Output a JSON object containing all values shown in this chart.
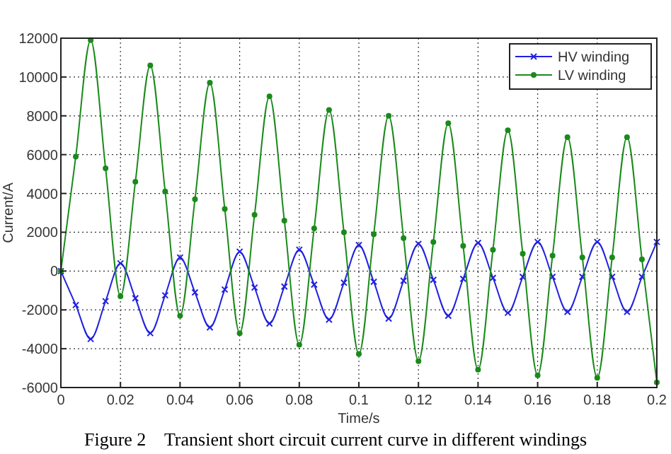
{
  "chart_data": {
    "type": "line",
    "xlabel": "Time/s",
    "ylabel": "Current/A",
    "x": [
      0,
      0.005,
      0.01,
      0.015,
      0.02,
      0.025,
      0.03,
      0.035,
      0.04,
      0.045,
      0.05,
      0.055,
      0.06,
      0.065,
      0.07,
      0.075,
      0.08,
      0.085,
      0.09,
      0.095,
      0.1,
      0.105,
      0.11,
      0.115,
      0.12,
      0.125,
      0.13,
      0.135,
      0.14,
      0.145,
      0.15,
      0.155,
      0.16,
      0.165,
      0.17,
      0.175,
      0.18,
      0.185,
      0.19,
      0.195,
      0.2
    ],
    "series": [
      {
        "name": "HV winding",
        "color": "#2020e0",
        "marker": "cross",
        "values": [
          0,
          -1750,
          -3500,
          -1550,
          400,
          -1400,
          -3200,
          -1250,
          700,
          -1100,
          -2900,
          -950,
          1000,
          -850,
          -2700,
          -800,
          1100,
          -700,
          -2500,
          -600,
          1340,
          -550,
          -2450,
          -500,
          1400,
          -450,
          -2300,
          -400,
          1450,
          -350,
          -2150,
          -300,
          1500,
          -300,
          -2100,
          -300,
          1500,
          -300,
          -2100,
          -300,
          1500
        ]
      },
      {
        "name": "LV winding",
        "color": "#1a8a1a",
        "marker": "circle",
        "values": [
          0,
          5900,
          11900,
          5300,
          -1300,
          4600,
          10600,
          4100,
          -2300,
          3700,
          9700,
          3200,
          -3200,
          2900,
          9000,
          2600,
          -3800,
          2200,
          8300,
          2000,
          -4270,
          1900,
          8000,
          1700,
          -4640,
          1500,
          7620,
          1300,
          -5080,
          1100,
          7250,
          900,
          -5370,
          800,
          6900,
          700,
          -5500,
          700,
          6900,
          600,
          -5740
        ]
      }
    ],
    "xlim": [
      0,
      0.2
    ],
    "xticks": [
      0,
      0.02,
      0.04,
      0.06,
      0.08,
      0.1,
      0.12,
      0.14,
      0.16,
      0.18,
      0.2
    ],
    "ylim": [
      -6000,
      12000
    ],
    "yticks": [
      -6000,
      -4000,
      -2000,
      0,
      2000,
      4000,
      6000,
      8000,
      10000,
      12000
    ],
    "grid": true,
    "legend": "top right",
    "line_style": "solid",
    "annotations": [
      "Figure 2    Transient short circuit current curve in different windings"
    ]
  }
}
